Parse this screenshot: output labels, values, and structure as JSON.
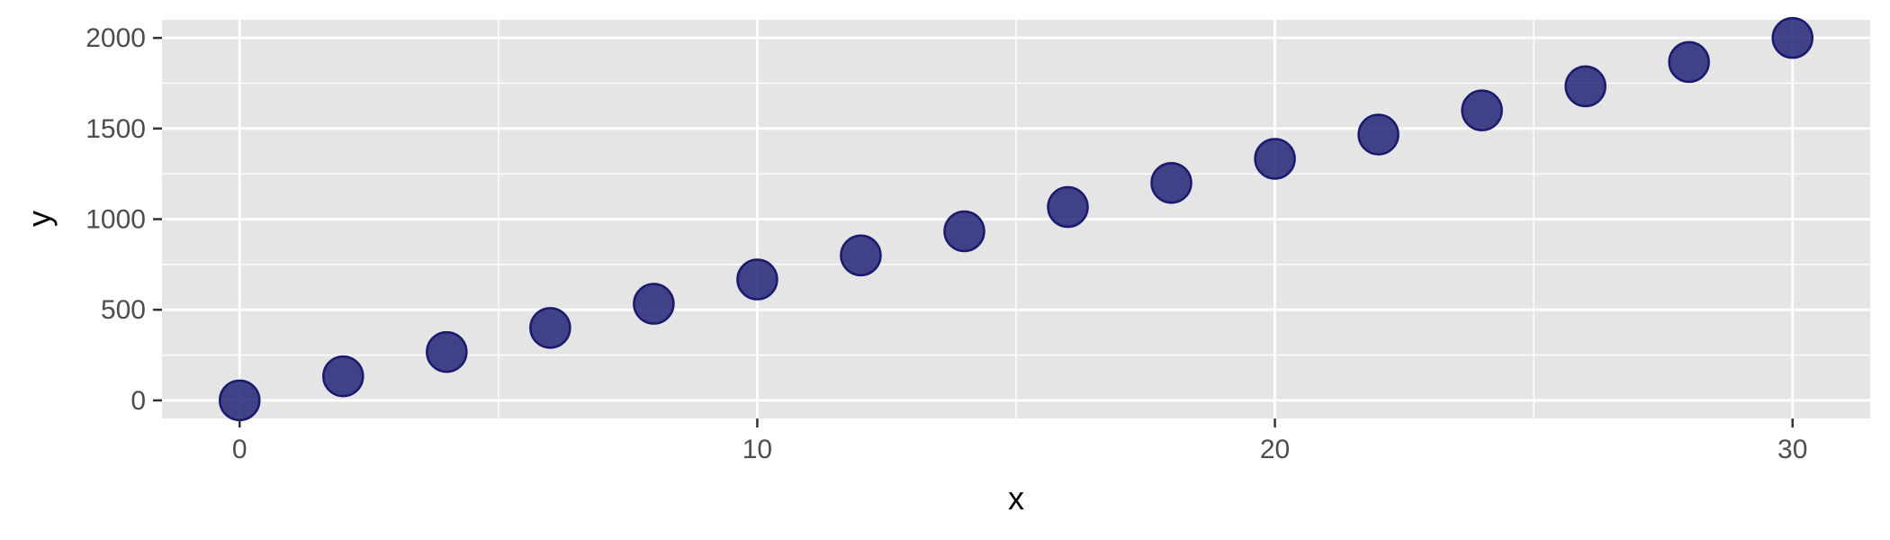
{
  "chart_data": {
    "type": "scatter",
    "title": "",
    "xlabel": "x",
    "ylabel": "y",
    "xlim": [
      -1.5,
      31.5
    ],
    "ylim": [
      -100,
      2100
    ],
    "x_ticks": [
      0,
      10,
      20,
      30
    ],
    "x_minor_ticks": [
      5,
      15,
      25
    ],
    "y_ticks": [
      0,
      500,
      1000,
      1500,
      2000
    ],
    "y_minor_ticks": [
      250,
      750,
      1250,
      1750
    ],
    "x_tick_labels": [
      "0",
      "10",
      "20",
      "30"
    ],
    "y_tick_labels": [
      "0",
      "500",
      "1000",
      "1500",
      "2000"
    ],
    "grid": true,
    "legend": "none",
    "colors": {
      "panel_bg": "#e5e5e5",
      "grid": "#ffffff",
      "point_fill": "#232477",
      "point_stroke": "#1a1b6e"
    },
    "series": [
      {
        "x": [
          0,
          2,
          4,
          6,
          8,
          10,
          12,
          14,
          16,
          18,
          20,
          22,
          24,
          26,
          28,
          30
        ],
        "y": [
          0,
          133,
          267,
          400,
          533,
          667,
          800,
          933,
          1067,
          1200,
          1333,
          1467,
          1600,
          1733,
          1867,
          2000
        ]
      }
    ]
  }
}
